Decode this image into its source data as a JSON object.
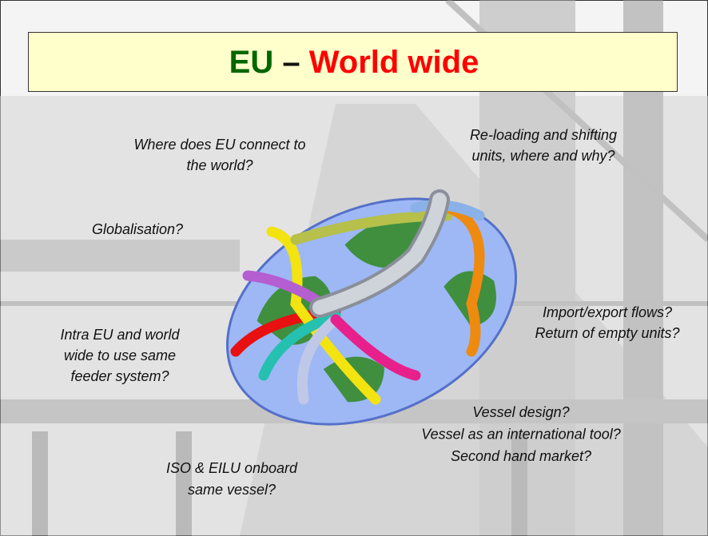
{
  "title": {
    "left": "EU",
    "separator": "–",
    "right": "World wide"
  },
  "questions": [
    {
      "lines": [
        "Where does EU connect to",
        "the world?"
      ]
    },
    {
      "lines": [
        "Re-loading and shifting",
        "units, where and why?"
      ]
    },
    {
      "lines": [
        "Globalisation?"
      ]
    },
    {
      "lines": [
        "Intra EU and world",
        "wide to use same",
        "feeder system?"
      ]
    },
    {
      "lines": [
        "Import/export flows?",
        "Return of empty units?"
      ]
    },
    {
      "lines": [
        "Vessel design?",
        "Vessel as an international tool?",
        "Second hand market?"
      ]
    },
    {
      "lines": [
        "ISO & EILU onboard",
        "same vessel?"
      ]
    }
  ]
}
